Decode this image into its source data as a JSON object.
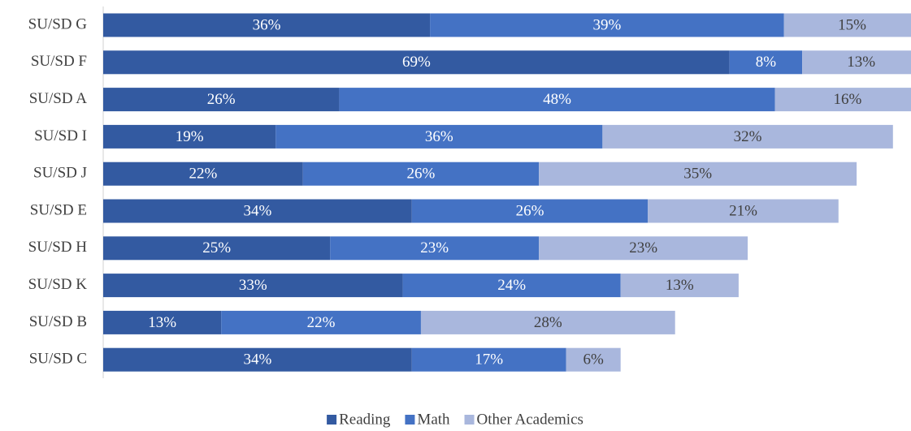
{
  "chart_data": {
    "type": "stacked_barh",
    "categories": [
      "SU/SD G",
      "SU/SD F",
      "SU/SD A",
      "SU/SD I",
      "SU/SD J",
      "SU/SD E",
      "SU/SD H",
      "SU/SD K",
      "SU/SD B",
      "SU/SD C"
    ],
    "series": [
      {
        "name": "Reading",
        "color": "#335aa1",
        "values": [
          36,
          69,
          26,
          19,
          22,
          34,
          25,
          33,
          13,
          34
        ],
        "value_labels": [
          "36%",
          "69%",
          "26%",
          "19%",
          "22%",
          "34%",
          "25%",
          "33%",
          "13%",
          "34%"
        ]
      },
      {
        "name": "Math",
        "color": "#4472c4",
        "values": [
          39,
          8,
          48,
          36,
          26,
          26,
          23,
          24,
          22,
          17
        ],
        "value_labels": [
          "39%",
          "8%",
          "48%",
          "36%",
          "26%",
          "26%",
          "23%",
          "24%",
          "22%",
          "17%"
        ]
      },
      {
        "name": "Other Academics",
        "color": "#a9b7dd",
        "values": [
          15,
          13,
          16,
          32,
          35,
          21,
          23,
          13,
          28,
          6
        ],
        "value_labels": [
          "15%",
          "13%",
          "16%",
          "32%",
          "35%",
          "21%",
          "23%",
          "13%",
          "28%",
          "6%"
        ]
      }
    ],
    "xlim": [
      0,
      100
    ],
    "legend": "bottom"
  }
}
